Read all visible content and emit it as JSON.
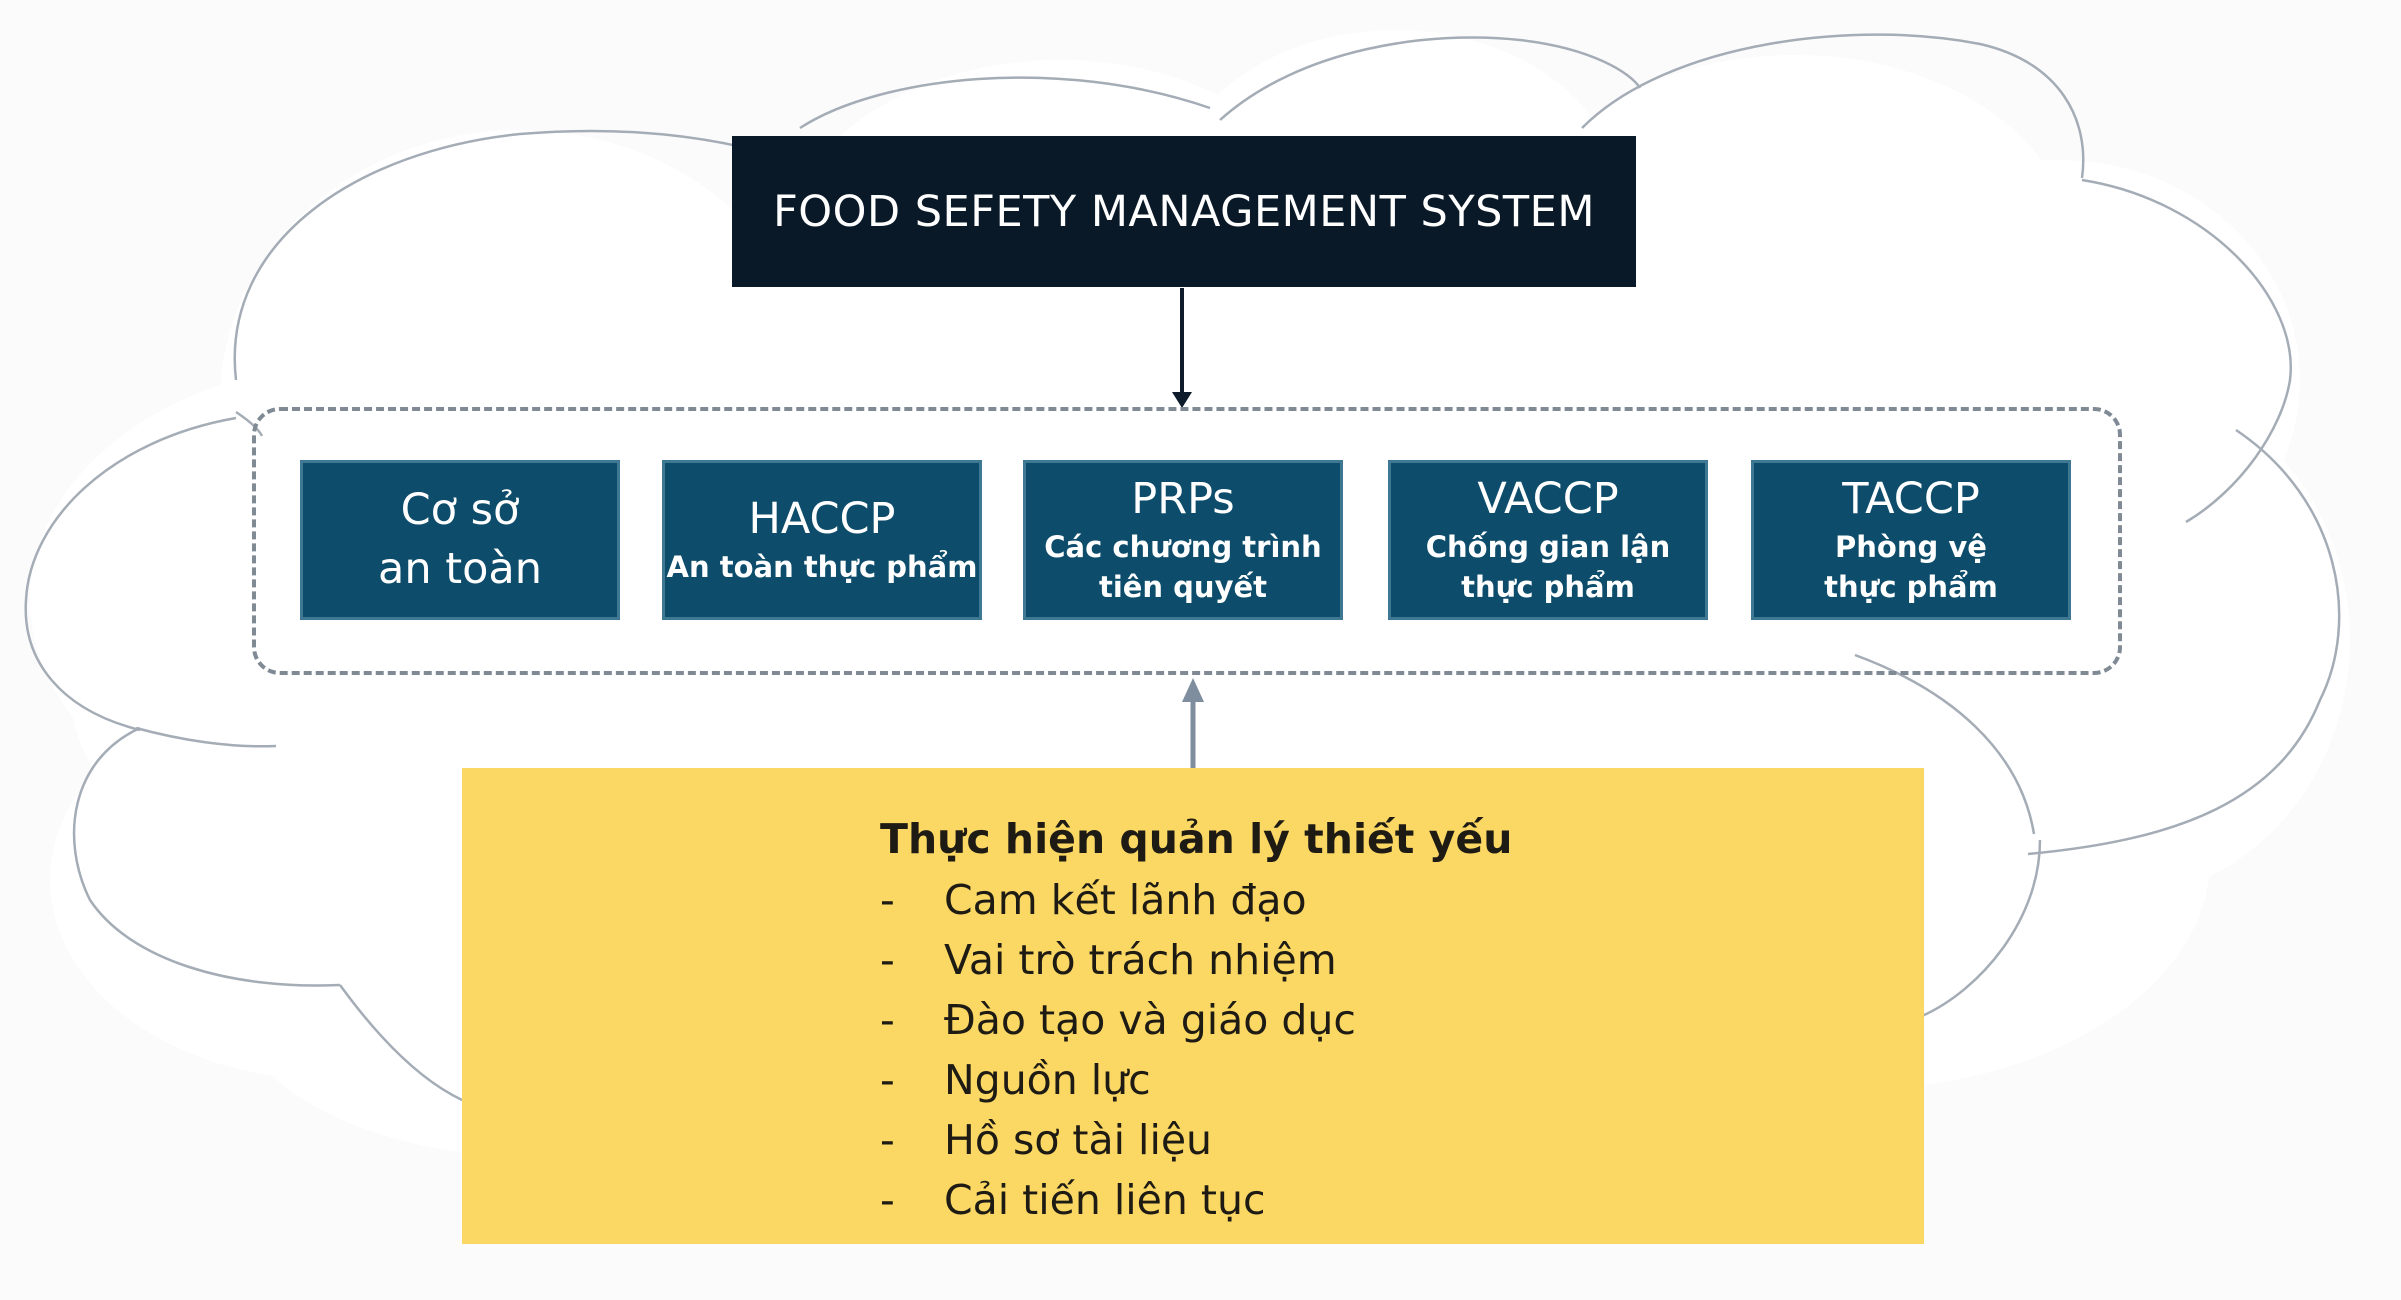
{
  "title": "FOOD SEFETY MANAGEMENT SYSTEM",
  "modules": [
    {
      "label": "Cơ sở\nan toàn",
      "sublabel": ""
    },
    {
      "label": "HACCP",
      "sublabel": "An toàn thực phẩm"
    },
    {
      "label": "PRPs",
      "sublabel": "Các chương trình\ntiên quyết"
    },
    {
      "label": "VACCP",
      "sublabel": "Chống gian lận\nthực phẩm"
    },
    {
      "label": "TACCP",
      "sublabel": "Phòng vệ\nthực phẩm"
    }
  ],
  "essentials": {
    "title": "Thực hiện quản lý thiết yếu",
    "bullet": "-",
    "items": [
      "Cam kết lãnh đạo",
      "Vai trò trách nhiệm",
      "Đào tạo và giáo dục",
      "Nguồn lực",
      "Hồ sơ tài liệu",
      "Cải tiến liên tục"
    ]
  },
  "colors": {
    "title_bg": "#0a1928",
    "module_bg": "#0d4d6b",
    "essentials_bg": "#fbd763",
    "cloud_stroke": "#a4acb6",
    "frame_stroke": "#808a95",
    "arrow_down": "#0d1b2a",
    "arrow_up": "#7f8e9e"
  }
}
